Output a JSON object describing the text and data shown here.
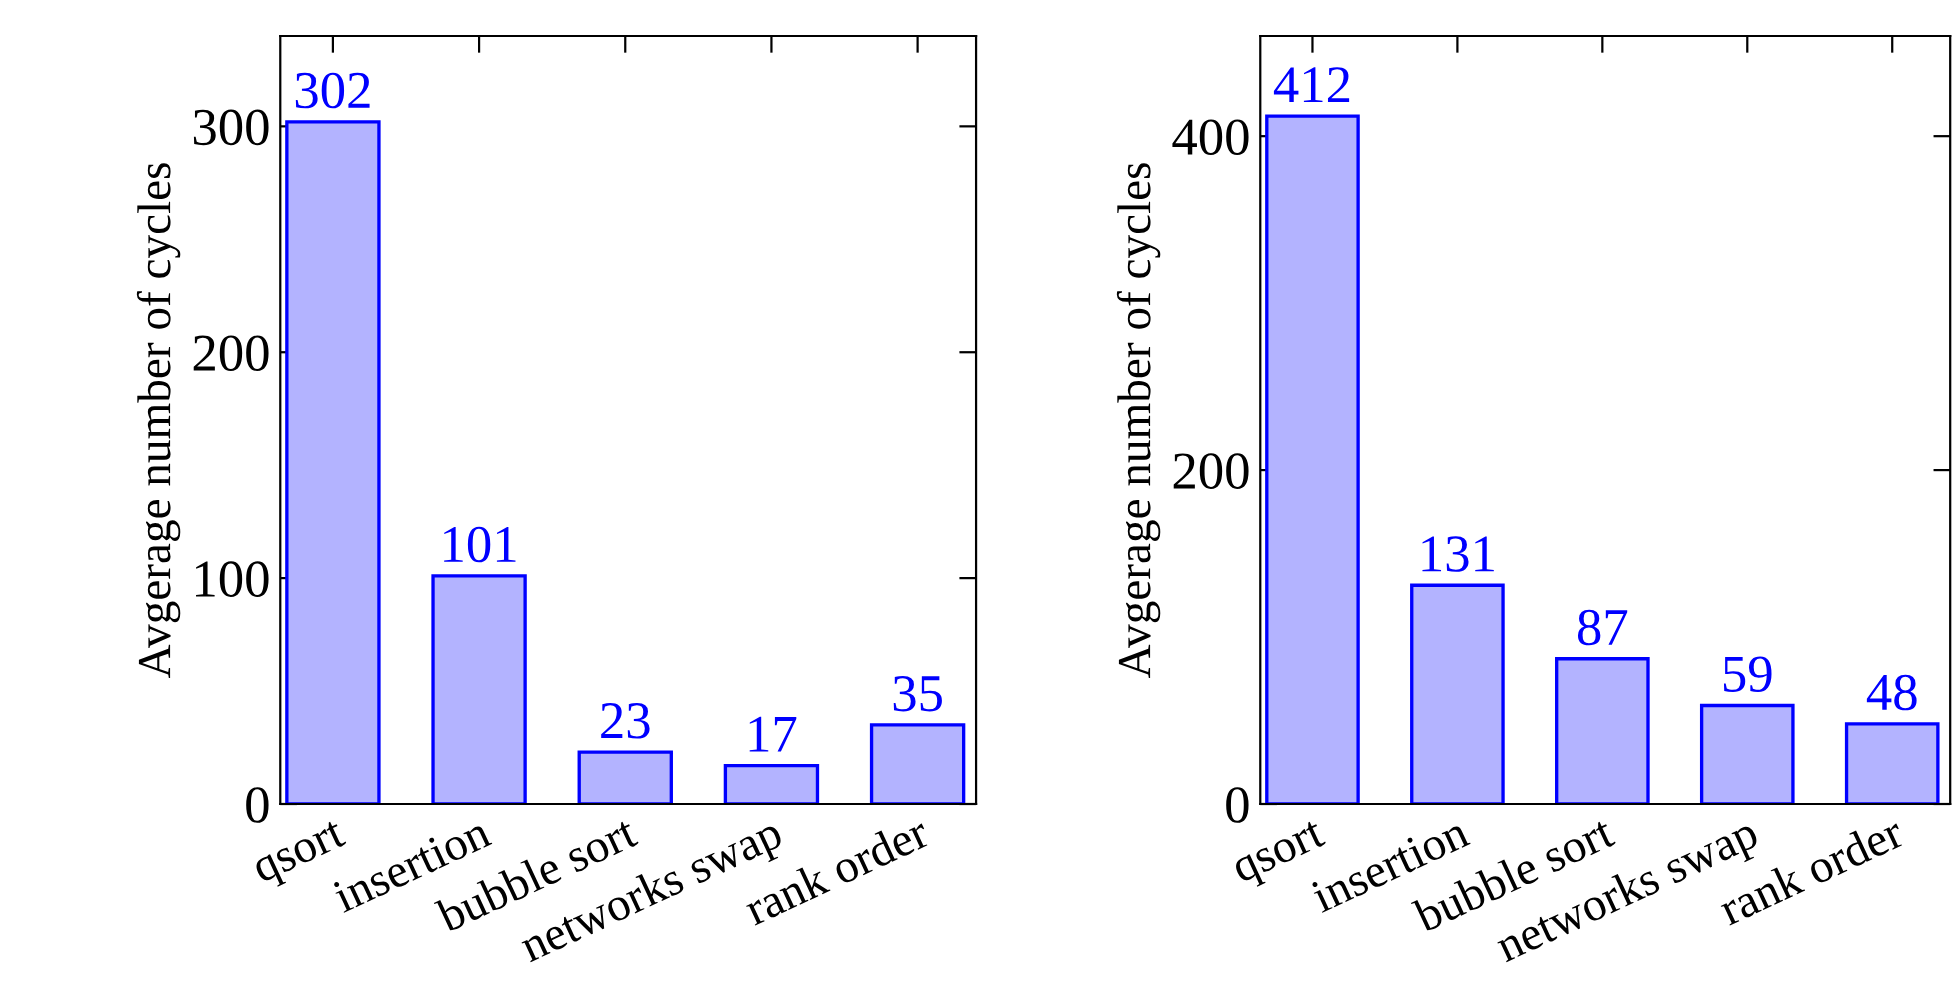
{
  "chart_data": [
    {
      "type": "bar",
      "ylabel": "Avgerage number of cycles",
      "categories": [
        "qsort",
        "insertion",
        "bubble sort",
        "networks swap",
        "rank order"
      ],
      "values": [
        302,
        101,
        23,
        17,
        35
      ],
      "color": "#b3b3ff",
      "ylim": [
        0,
        340
      ],
      "yticks": [
        0,
        100,
        200,
        300
      ],
      "data_labels": true,
      "grid": false,
      "legend": false
    },
    {
      "type": "bar",
      "ylabel": "Avgerage number of cycles",
      "categories": [
        "qsort",
        "insertion",
        "bubble sort",
        "networks swap",
        "rank order"
      ],
      "values": [
        412,
        131,
        87,
        59,
        48
      ],
      "color": "#b3b3ff",
      "ylim": [
        0,
        460
      ],
      "yticks": [
        0,
        200,
        400
      ],
      "data_labels": true,
      "grid": false,
      "legend": false
    }
  ]
}
